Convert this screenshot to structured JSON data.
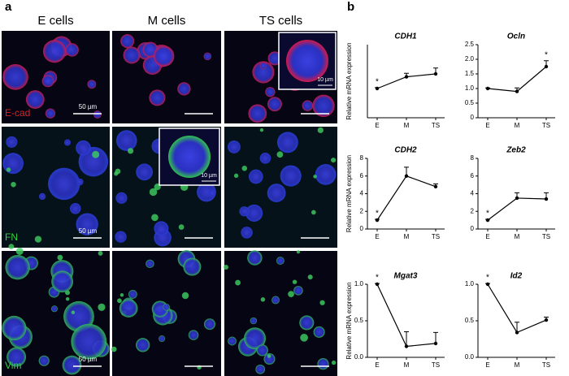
{
  "panel_a": {
    "label": "a",
    "columns": [
      "E cells",
      "M cells",
      "TS cells"
    ],
    "rows": [
      "E-cad",
      "FN",
      "Vim"
    ],
    "scale_bars": [
      "50 µm",
      "50 µm",
      "50 µm"
    ],
    "inset_scale_bars": [
      "10 µm",
      "10 µm"
    ]
  },
  "panel_b_label": "b",
  "chart_data": [
    {
      "type": "line",
      "title": "CDH1",
      "ylabel": "Relative mRNA expression",
      "categories": [
        "E",
        "M",
        "TS"
      ],
      "values": [
        1.0,
        1.4,
        1.5
      ],
      "errors": [
        0.03,
        0.12,
        0.2
      ],
      "color": "#000000",
      "ylim": [
        0,
        2.5
      ],
      "annotations": [
        {
          "text": "*",
          "category": "E"
        }
      ]
    },
    {
      "type": "line",
      "title": "Ocln",
      "categories": [
        "E",
        "M",
        "TS"
      ],
      "values": [
        1.0,
        0.9,
        1.75
      ],
      "errors": [
        0.02,
        0.12,
        0.2
      ],
      "color": "#000000",
      "ylim": [
        0,
        2.5
      ],
      "yticks": [
        0,
        {
          "value": 0.5,
          "label": "0.5"
        },
        {
          "value": 1,
          "label": "1.0"
        },
        {
          "value": 1.5,
          "label": "1.5"
        },
        {
          "value": 2,
          "label": "2.0"
        },
        {
          "value": 2.5,
          "label": "2.5"
        }
      ],
      "annotations": [
        {
          "text": "*",
          "category": "TS"
        }
      ]
    },
    {
      "type": "line",
      "title": "CDH2",
      "ylabel": "Relative mRNA expression",
      "categories": [
        "E",
        "M",
        "TS"
      ],
      "values": [
        1,
        6,
        4.8
      ],
      "errors": [
        0.1,
        1.0,
        0.3
      ],
      "color": "#000000",
      "ylim": [
        0,
        8
      ],
      "yticks": [
        0,
        2,
        4,
        6,
        8
      ],
      "annotations": [
        {
          "text": "*",
          "category": "E"
        }
      ]
    },
    {
      "type": "line",
      "title": "Zeb2",
      "categories": [
        "E",
        "M",
        "TS"
      ],
      "values": [
        1,
        3.5,
        3.4
      ],
      "errors": [
        0.1,
        0.6,
        0.7
      ],
      "color": "#000000",
      "ylim": [
        0,
        8
      ],
      "yticks": [
        0,
        2,
        4,
        6,
        8
      ],
      "annotations": [
        {
          "text": "*",
          "category": "E"
        }
      ]
    },
    {
      "type": "line",
      "title": "Mgat3",
      "ylabel": "Relative mRNA expression",
      "categories": [
        "E",
        "M",
        "TS"
      ],
      "values": [
        1,
        0.15,
        0.19
      ],
      "errors": [
        0.01,
        0.2,
        0.15
      ],
      "color": "#000000",
      "ylim": [
        0,
        1
      ],
      "yticks": [
        {
          "value": 0,
          "label": "0.0"
        },
        {
          "value": 0.5,
          "label": "0.5"
        },
        {
          "value": 1,
          "label": "1.0"
        }
      ],
      "annotations": [
        {
          "text": "*",
          "category": "E"
        }
      ]
    },
    {
      "type": "line",
      "title": "Id2",
      "categories": [
        "E",
        "M",
        "TS"
      ],
      "values": [
        1,
        0.34,
        0.51
      ],
      "errors": [
        0.01,
        0.14,
        0.04
      ],
      "color": "#000000",
      "ylim": [
        0,
        1
      ],
      "yticks": [
        {
          "value": 0,
          "label": "0.0"
        },
        {
          "value": 0.5,
          "label": "0.5"
        },
        {
          "value": 1,
          "label": "1.0"
        }
      ],
      "annotations": [
        {
          "text": "*",
          "category": "E"
        }
      ]
    }
  ]
}
